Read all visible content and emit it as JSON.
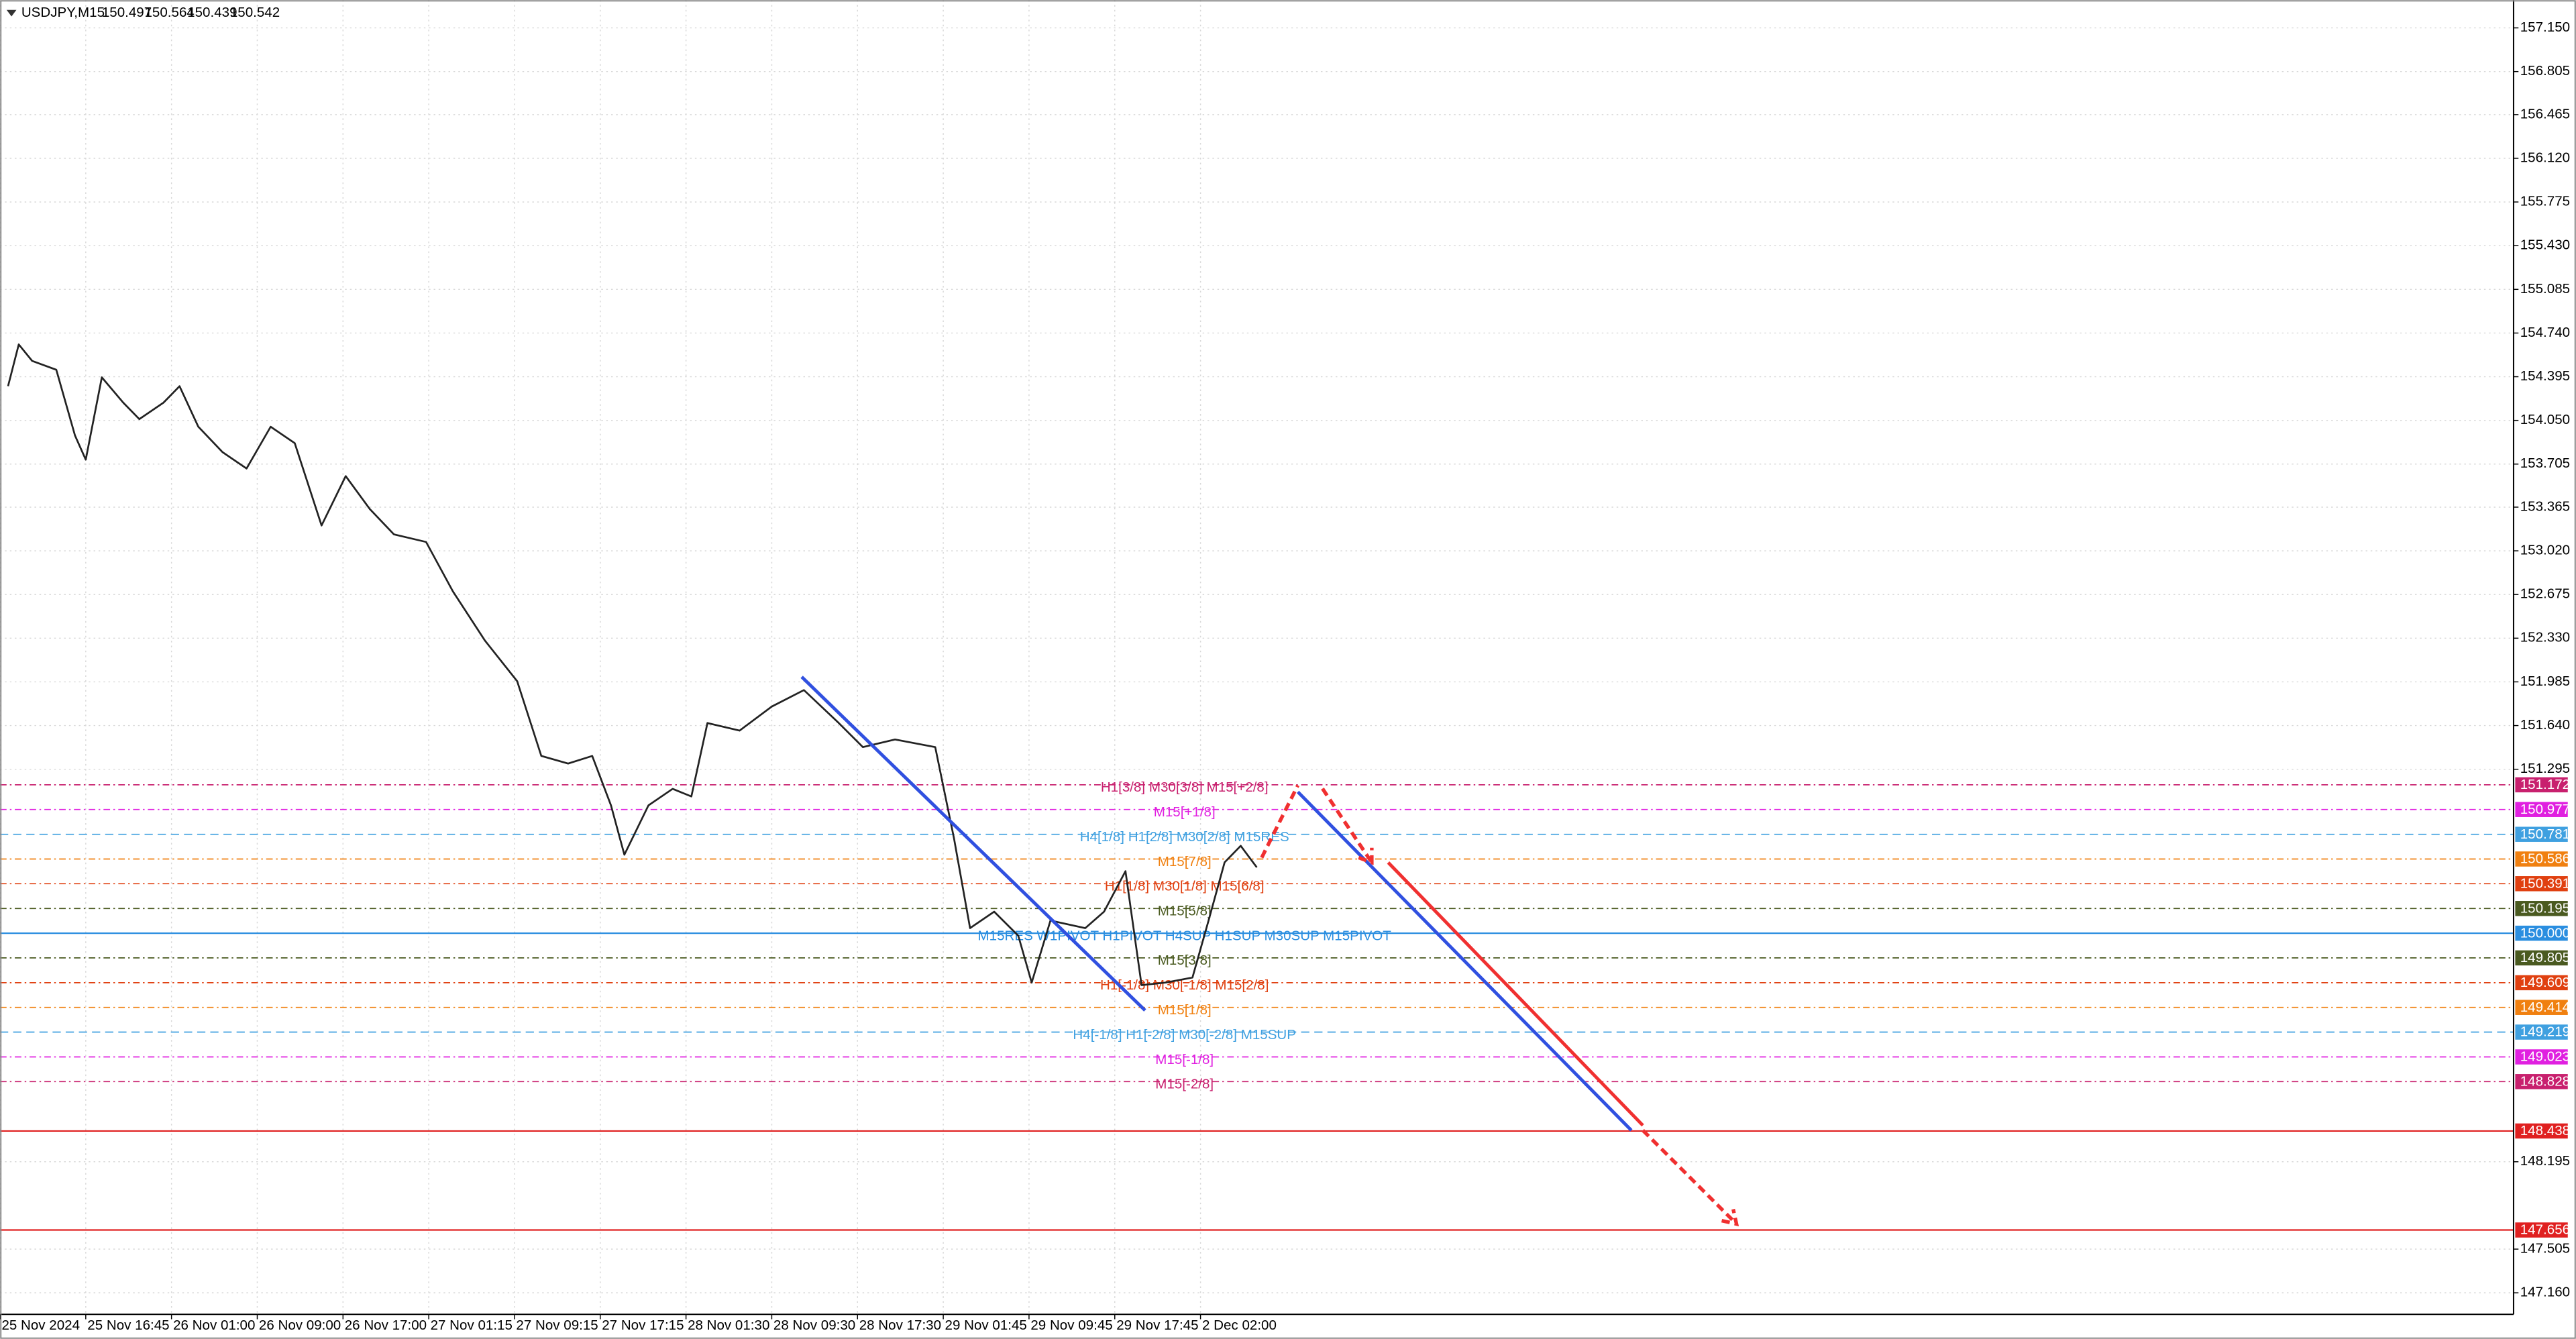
{
  "chart_data": {
    "type": "line",
    "title": "USDJPY,M15",
    "ohlc": [
      150.497,
      150.564,
      150.439,
      150.542
    ],
    "xlim": [
      0,
      938
    ],
    "ylim": [
      146.99,
      157.37
    ],
    "grid": true,
    "xticks": [
      {
        "value": 0,
        "label": "25 Nov 2024"
      },
      {
        "value": 32,
        "label": "25 Nov 16:45"
      },
      {
        "value": 64,
        "label": "26 Nov 01:00"
      },
      {
        "value": 96,
        "label": "26 Nov 09:00"
      },
      {
        "value": 128,
        "label": "26 Nov 17:00"
      },
      {
        "value": 160,
        "label": "27 Nov 01:15"
      },
      {
        "value": 192,
        "label": "27 Nov 09:15"
      },
      {
        "value": 224,
        "label": "27 Nov 17:15"
      },
      {
        "value": 256,
        "label": "28 Nov 01:30"
      },
      {
        "value": 288,
        "label": "28 Nov 09:30"
      },
      {
        "value": 320,
        "label": "28 Nov 17:30"
      },
      {
        "value": 352,
        "label": "29 Nov 01:45"
      },
      {
        "value": 384,
        "label": "29 Nov 09:45"
      },
      {
        "value": 416,
        "label": "29 Nov 17:45"
      },
      {
        "value": 448,
        "label": "2 Dec 02:00"
      }
    ],
    "yticks": [
      {
        "value": 157.15,
        "label": "157.150"
      },
      156.805,
      156.465,
      {
        "value": 156.12,
        "label": "156.120"
      },
      155.775,
      {
        "value": 155.43,
        "label": "155.430"
      },
      155.085,
      {
        "value": 154.74,
        "label": "154.740"
      },
      154.395,
      {
        "value": 154.05,
        "label": "154.050"
      },
      153.705,
      153.365,
      {
        "value": 153.02,
        "label": "153.020"
      },
      152.675,
      {
        "value": 152.33,
        "label": "152.330"
      },
      151.985,
      {
        "value": 151.64,
        "label": "151.640"
      },
      151.295,
      148.195,
      147.505,
      {
        "value": 147.16,
        "label": "147.160"
      }
    ],
    "series": [
      {
        "name": "USDJPY",
        "color": "#222222",
        "x": [
          3,
          7,
          12,
          21,
          28,
          32,
          38,
          46,
          52,
          61,
          67,
          74,
          83,
          92,
          101,
          110,
          120,
          129,
          138,
          147,
          159,
          169,
          181,
          193,
          202,
          212,
          221,
          228,
          233,
          242,
          251,
          258,
          264,
          276,
          288,
          300,
          313,
          322,
          334,
          349,
          356,
          362,
          371,
          380,
          385,
          392,
          405,
          412,
          420,
          426,
          435,
          445,
          451,
          457,
          463,
          469
        ],
        "values": [
          154.32,
          154.65,
          154.52,
          154.45,
          153.93,
          153.74,
          154.39,
          154.19,
          154.06,
          154.19,
          154.32,
          154.0,
          153.8,
          153.67,
          154.0,
          153.87,
          153.22,
          153.61,
          153.35,
          153.15,
          153.09,
          152.7,
          152.31,
          151.99,
          151.4,
          151.34,
          151.4,
          151.01,
          150.62,
          151.01,
          151.14,
          151.08,
          151.66,
          151.6,
          151.79,
          151.92,
          151.66,
          151.47,
          151.53,
          151.47,
          150.75,
          150.04,
          150.17,
          149.98,
          149.61,
          150.1,
          150.04,
          150.17,
          150.49,
          149.59,
          149.61,
          149.65,
          150.1,
          150.56,
          150.69,
          150.52
        ]
      }
    ],
    "levels": [
      {
        "value": 151.172,
        "color": "#c8206e",
        "style": "dashdot",
        "text": "H1[3/8] M30[3/8] M15[+2/8]"
      },
      {
        "value": 150.977,
        "color": "#e020e0",
        "style": "dashdot",
        "text": "M15[+1/8]"
      },
      {
        "value": 150.781,
        "color": "#3fa0e0",
        "style": "dashed",
        "text": "H4[1/8] H1[2/8] M30[2/8] M15RES"
      },
      {
        "value": 150.586,
        "color": "#f08010",
        "style": "dashdot",
        "text": "M15[7/8]"
      },
      {
        "value": 150.391,
        "color": "#e04010",
        "style": "dashdot",
        "text": "H1[1/8] M30[1/8] M15[6/8]"
      },
      {
        "value": 150.195,
        "color": "#4a5a20",
        "style": "dashdot",
        "text": "M15[5/8]"
      },
      {
        "value": 150,
        "label": "150.000",
        "color": "#2a8ee0",
        "style": "solid",
        "text": "M15RES W1PIVOT H1PIVOT H4SUP H1SUP M30SUP M15PIVOT"
      },
      {
        "value": 149.805,
        "color": "#4a5a20",
        "style": "dashdot",
        "text": "M15[3/8]"
      },
      {
        "value": 149.609,
        "color": "#e04010",
        "style": "dashdot",
        "text": "H1[-1/8] M30[-1/8] M15[2/8]"
      },
      {
        "value": 149.414,
        "color": "#f08010",
        "style": "dashdot",
        "text": "M15[1/8]"
      },
      {
        "value": 149.219,
        "color": "#3fa0e0",
        "style": "dashed",
        "text": "H4[-1/8] H1[-2/8] M30[-2/8] M15SUP"
      },
      {
        "value": 149.023,
        "color": "#e020e0",
        "style": "dashdot",
        "text": "M15[-1/8]"
      },
      {
        "value": 148.828,
        "color": "#c8206e",
        "style": "dashdot",
        "text": "M15[-2/8]"
      },
      {
        "value": 148.438,
        "color": "#e02020",
        "style": "solid"
      },
      {
        "value": 147.656,
        "color": "#e02020",
        "style": "solid"
      }
    ]
  }
}
